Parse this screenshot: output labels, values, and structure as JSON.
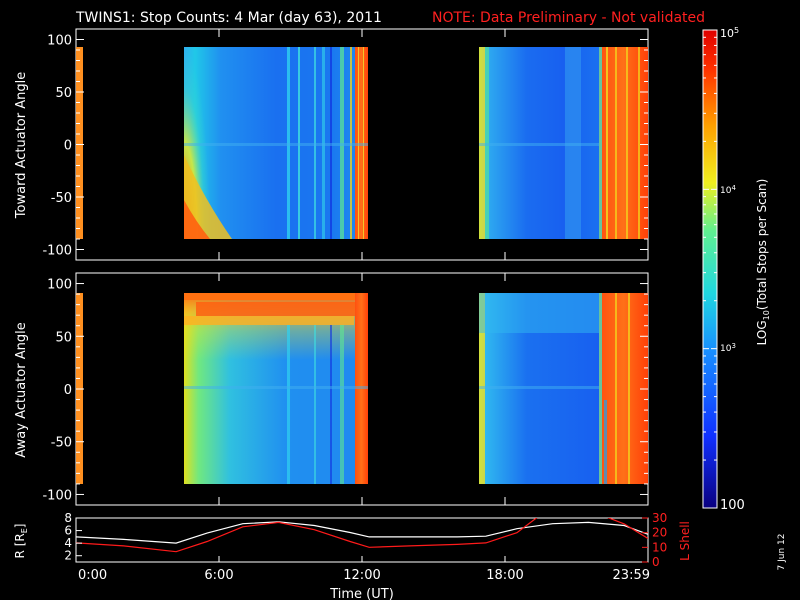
{
  "header": {
    "title": "TWINS1: Stop Counts:  4 Mar (day  63), 2011",
    "note": "NOTE: Data Preliminary - Not validated",
    "title_color": "#ffffff",
    "note_color": "#ff2020"
  },
  "footer": {
    "date_stamp": "7 Jun 12"
  },
  "chart_data": [
    {
      "type": "heatmap",
      "panel": "top",
      "ylabel": "Toward Actuator Angle",
      "ylim": [
        -110,
        110
      ],
      "yticks": [
        "100",
        "50",
        "0",
        "-50",
        "-100"
      ],
      "ytick_values": [
        100,
        50,
        0,
        -50,
        -100
      ],
      "data_coverage_hours": [
        [
          0.0,
          0.1
        ],
        [
          4.4,
          12.2
        ],
        [
          17.2,
          24.0
        ]
      ],
      "angle_range": [
        -90,
        90
      ],
      "description_levels": "mostly cyan/blue 10^2.8-10^3.3; yellow-red near 4.5-5 h low angles; red bands near 11.8-12.2 h and 22.3-24 h"
    },
    {
      "type": "heatmap",
      "panel": "middle",
      "ylabel": "Away Actuator Angle",
      "ylim": [
        -110,
        110
      ],
      "yticks": [
        "100",
        "50",
        "0",
        "-50",
        "-100"
      ],
      "ytick_values": [
        100,
        50,
        0,
        -50,
        -100
      ],
      "data_coverage_hours": [
        [
          0.0,
          0.1
        ],
        [
          4.4,
          12.2
        ],
        [
          17.2,
          24.0
        ]
      ],
      "angle_range": [
        -90,
        90
      ]
    },
    {
      "type": "line",
      "panel": "bottom",
      "xlabel": "Time (UT)",
      "xticks": [
        "0:00",
        "6:00",
        "12:00",
        "18:00",
        "23:59"
      ],
      "xtick_values": [
        0,
        6,
        12,
        18,
        24
      ],
      "left_axis": {
        "label": "R [R",
        "label_sub": "E",
        "label_end": "]",
        "ylim": [
          1,
          8
        ],
        "ticks": [
          "8",
          "6",
          "4",
          "2"
        ],
        "tick_values": [
          8,
          6,
          4,
          2
        ]
      },
      "right_axis": {
        "label": "L Shell",
        "ylim": [
          0,
          30
        ],
        "ticks": [
          "30",
          "20",
          "10",
          "0"
        ],
        "tick_values": [
          30,
          20,
          10,
          0
        ]
      },
      "series": [
        {
          "name": "R",
          "color": "#ffffff",
          "axis": "left",
          "x": [
            0,
            2,
            4.2,
            5.5,
            7,
            8.5,
            10,
            11.5,
            12.3,
            14,
            16,
            17.2,
            18.5,
            20,
            21.5,
            23,
            24
          ],
          "values": [
            5.0,
            4.6,
            4.0,
            5.6,
            7.1,
            7.4,
            6.8,
            5.7,
            5.0,
            5.0,
            5.0,
            5.1,
            6.3,
            7.1,
            7.3,
            6.8,
            5.4
          ]
        },
        {
          "name": "L Shell",
          "color": "#ff1a1a",
          "axis": "right",
          "x": [
            0,
            2,
            4.2,
            5.5,
            7,
            8.5,
            10,
            11.5,
            12.3,
            14,
            16,
            17.2,
            18.5,
            19.4,
            22.2,
            23,
            24
          ],
          "values": [
            13,
            11,
            7,
            14,
            24,
            27,
            22,
            14,
            10,
            11,
            12,
            13,
            20,
            31,
            31,
            26,
            16
          ]
        }
      ]
    }
  ],
  "colorbar": {
    "label_prefix": "LOG",
    "label_sub": "10",
    "label_suffix": "(Total Stops per Scan)",
    "min_label": "100",
    "tick_mid": "10",
    "tick_mid_sup": "3",
    "tick_high": "10",
    "tick_high_sup": "4",
    "tick_top": "10",
    "tick_top_sup": "5",
    "range_log10": [
      2,
      5
    ],
    "ticks_log10": [
      2,
      3,
      4,
      5
    ]
  }
}
